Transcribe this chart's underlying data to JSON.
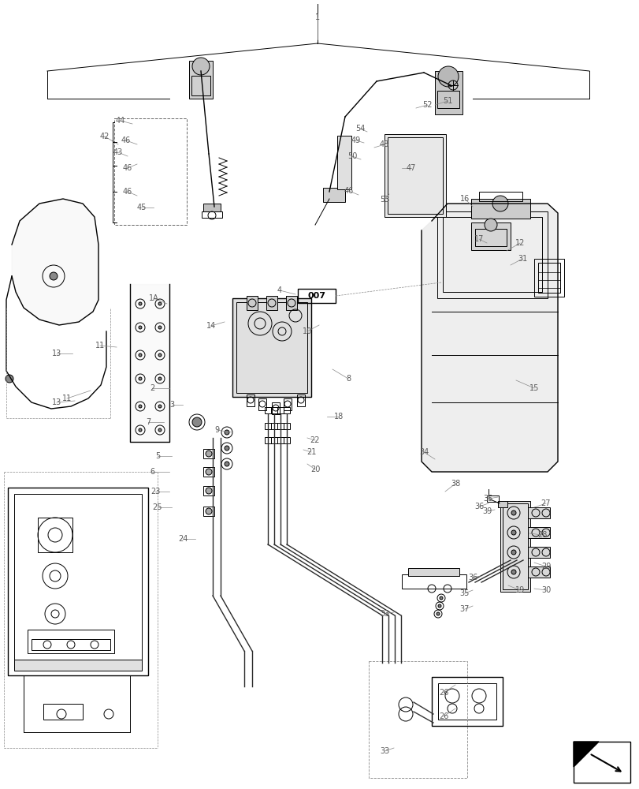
{
  "bg_color": "#ffffff",
  "line_color": "#000000",
  "label_color": "#5a5a5a",
  "fig_width": 8.12,
  "fig_height": 10.0,
  "dpi": 100
}
